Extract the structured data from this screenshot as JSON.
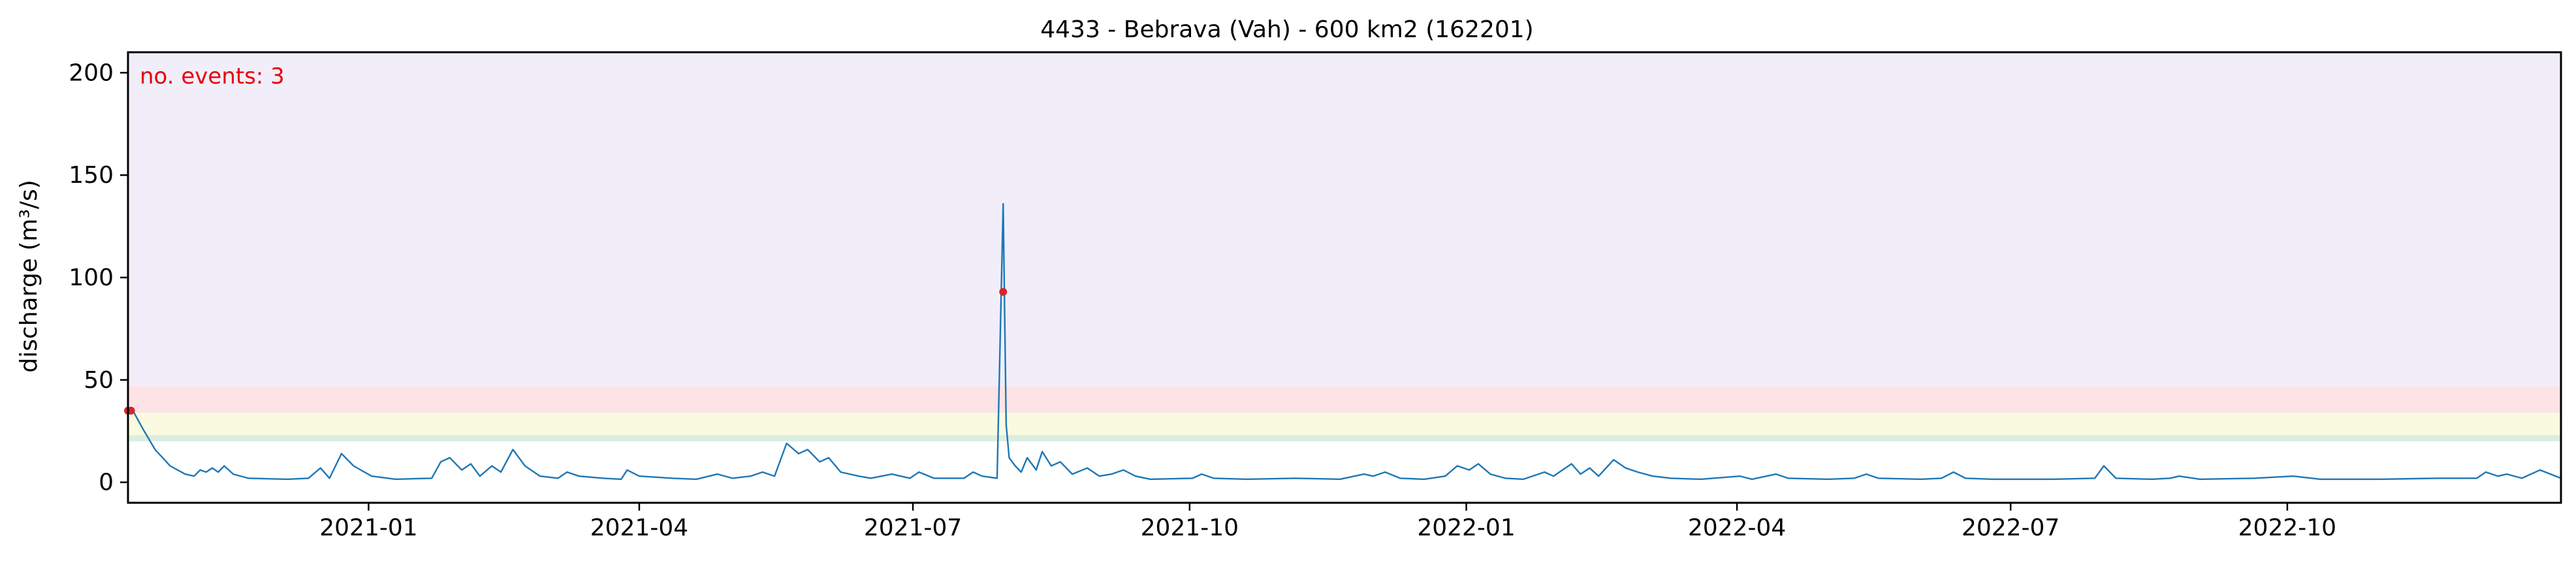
{
  "chart_data": {
    "type": "line",
    "title": "4433 - Bebrava (Vah) - 600 km2 (162201)",
    "ylabel": "discharge (m³/s)",
    "xlabel": "",
    "annotation": "no. events: 3",
    "xlim": [
      "2020-10-13",
      "2022-12-31"
    ],
    "ylim": [
      -10,
      210
    ],
    "yticks": [
      0,
      50,
      100,
      150,
      200
    ],
    "xticks": [
      {
        "date": "2021-01-01",
        "label": "2021-01"
      },
      {
        "date": "2021-04-01",
        "label": "2021-04"
      },
      {
        "date": "2021-07-01",
        "label": "2021-07"
      },
      {
        "date": "2021-10-01",
        "label": "2021-10"
      },
      {
        "date": "2022-01-01",
        "label": "2022-01"
      },
      {
        "date": "2022-04-01",
        "label": "2022-04"
      },
      {
        "date": "2022-07-01",
        "label": "2022-07"
      },
      {
        "date": "2022-10-01",
        "label": "2022-10"
      }
    ],
    "threshold_bands": [
      {
        "from": 20,
        "to": 23,
        "color": "#dbeee0"
      },
      {
        "from": 23,
        "to": 34,
        "color": "#fafae0"
      },
      {
        "from": 34,
        "to": 47,
        "color": "#fde3e6"
      },
      {
        "from": 47,
        "to": 210,
        "color": "#f1eefa"
      }
    ],
    "series": [
      {
        "color": "#1f77b4",
        "points": [
          [
            "2020-10-13",
            36
          ],
          [
            "2020-10-15",
            34
          ],
          [
            "2020-10-18",
            26
          ],
          [
            "2020-10-22",
            16
          ],
          [
            "2020-10-27",
            8
          ],
          [
            "2020-11-01",
            4
          ],
          [
            "2020-11-04",
            3
          ],
          [
            "2020-11-06",
            6
          ],
          [
            "2020-11-08",
            5
          ],
          [
            "2020-11-10",
            7
          ],
          [
            "2020-11-12",
            5
          ],
          [
            "2020-11-14",
            8
          ],
          [
            "2020-11-17",
            4
          ],
          [
            "2020-11-22",
            2
          ],
          [
            "2020-12-05",
            1.5
          ],
          [
            "2020-12-12",
            2
          ],
          [
            "2020-12-16",
            7
          ],
          [
            "2020-12-19",
            2
          ],
          [
            "2020-12-23",
            14
          ],
          [
            "2020-12-27",
            8
          ],
          [
            "2021-01-02",
            3
          ],
          [
            "2021-01-10",
            1.5
          ],
          [
            "2021-01-22",
            2
          ],
          [
            "2021-01-25",
            10
          ],
          [
            "2021-01-28",
            12
          ],
          [
            "2021-02-01",
            6
          ],
          [
            "2021-02-04",
            9
          ],
          [
            "2021-02-07",
            3
          ],
          [
            "2021-02-11",
            8
          ],
          [
            "2021-02-14",
            5
          ],
          [
            "2021-02-18",
            16
          ],
          [
            "2021-02-22",
            8
          ],
          [
            "2021-02-27",
            3
          ],
          [
            "2021-03-05",
            2
          ],
          [
            "2021-03-08",
            5
          ],
          [
            "2021-03-12",
            3
          ],
          [
            "2021-03-20",
            2
          ],
          [
            "2021-03-26",
            1.5
          ],
          [
            "2021-03-28",
            6
          ],
          [
            "2021-04-01",
            3
          ],
          [
            "2021-04-12",
            2
          ],
          [
            "2021-04-20",
            1.5
          ],
          [
            "2021-04-27",
            4
          ],
          [
            "2021-05-02",
            2
          ],
          [
            "2021-05-08",
            3
          ],
          [
            "2021-05-12",
            5
          ],
          [
            "2021-05-16",
            3
          ],
          [
            "2021-05-20",
            19
          ],
          [
            "2021-05-24",
            14
          ],
          [
            "2021-05-27",
            16
          ],
          [
            "2021-05-31",
            10
          ],
          [
            "2021-06-03",
            12
          ],
          [
            "2021-06-07",
            5
          ],
          [
            "2021-06-13",
            3
          ],
          [
            "2021-06-17",
            2
          ],
          [
            "2021-06-24",
            4
          ],
          [
            "2021-06-30",
            2
          ],
          [
            "2021-07-03",
            5
          ],
          [
            "2021-07-08",
            2
          ],
          [
            "2021-07-18",
            2
          ],
          [
            "2021-07-21",
            5
          ],
          [
            "2021-07-24",
            3
          ],
          [
            "2021-07-29",
            2
          ],
          [
            "2021-07-31",
            136
          ],
          [
            "2021-08-01",
            28
          ],
          [
            "2021-08-02",
            12
          ],
          [
            "2021-08-04",
            8
          ],
          [
            "2021-08-06",
            5
          ],
          [
            "2021-08-08",
            12
          ],
          [
            "2021-08-11",
            6
          ],
          [
            "2021-08-13",
            15
          ],
          [
            "2021-08-16",
            8
          ],
          [
            "2021-08-19",
            10
          ],
          [
            "2021-08-23",
            4
          ],
          [
            "2021-08-28",
            7
          ],
          [
            "2021-09-01",
            3
          ],
          [
            "2021-09-05",
            4
          ],
          [
            "2021-09-09",
            6
          ],
          [
            "2021-09-13",
            3
          ],
          [
            "2021-09-18",
            1.5
          ],
          [
            "2021-10-02",
            2
          ],
          [
            "2021-10-05",
            4
          ],
          [
            "2021-10-09",
            2
          ],
          [
            "2021-10-20",
            1.5
          ],
          [
            "2021-11-05",
            2
          ],
          [
            "2021-11-20",
            1.5
          ],
          [
            "2021-11-28",
            4
          ],
          [
            "2021-12-01",
            3
          ],
          [
            "2021-12-05",
            5
          ],
          [
            "2021-12-10",
            2
          ],
          [
            "2021-12-18",
            1.5
          ],
          [
            "2021-12-25",
            3
          ],
          [
            "2021-12-29",
            8
          ],
          [
            "2022-01-02",
            6
          ],
          [
            "2022-01-05",
            9
          ],
          [
            "2022-01-09",
            4
          ],
          [
            "2022-01-14",
            2
          ],
          [
            "2022-01-20",
            1.5
          ],
          [
            "2022-01-27",
            5
          ],
          [
            "2022-01-30",
            3
          ],
          [
            "2022-02-02",
            6
          ],
          [
            "2022-02-05",
            9
          ],
          [
            "2022-02-08",
            4
          ],
          [
            "2022-02-11",
            7
          ],
          [
            "2022-02-14",
            3
          ],
          [
            "2022-02-19",
            11
          ],
          [
            "2022-02-23",
            7
          ],
          [
            "2022-02-27",
            5
          ],
          [
            "2022-03-04",
            3
          ],
          [
            "2022-03-10",
            2
          ],
          [
            "2022-03-20",
            1.5
          ],
          [
            "2022-04-02",
            3
          ],
          [
            "2022-04-06",
            1.5
          ],
          [
            "2022-04-14",
            4
          ],
          [
            "2022-04-18",
            2
          ],
          [
            "2022-05-01",
            1.5
          ],
          [
            "2022-05-10",
            2
          ],
          [
            "2022-05-14",
            4
          ],
          [
            "2022-05-18",
            2
          ],
          [
            "2022-06-01",
            1.5
          ],
          [
            "2022-06-08",
            2
          ],
          [
            "2022-06-12",
            5
          ],
          [
            "2022-06-16",
            2
          ],
          [
            "2022-06-25",
            1.5
          ],
          [
            "2022-07-15",
            1.5
          ],
          [
            "2022-07-29",
            2
          ],
          [
            "2022-08-01",
            8
          ],
          [
            "2022-08-05",
            2
          ],
          [
            "2022-08-17",
            1.5
          ],
          [
            "2022-08-23",
            2
          ],
          [
            "2022-08-26",
            3
          ],
          [
            "2022-09-02",
            1.5
          ],
          [
            "2022-09-20",
            2
          ],
          [
            "2022-10-03",
            3
          ],
          [
            "2022-10-12",
            1.5
          ],
          [
            "2022-11-01",
            1.5
          ],
          [
            "2022-11-20",
            2
          ],
          [
            "2022-12-03",
            2
          ],
          [
            "2022-12-06",
            5
          ],
          [
            "2022-12-10",
            3
          ],
          [
            "2022-12-13",
            4
          ],
          [
            "2022-12-18",
            2
          ],
          [
            "2022-12-24",
            6
          ],
          [
            "2022-12-31",
            2
          ]
        ]
      }
    ],
    "events": [
      {
        "date": "2020-10-13",
        "value": 35,
        "color": "#d62728"
      },
      {
        "date": "2020-10-14",
        "value": 35,
        "color": "#d62728"
      },
      {
        "date": "2021-07-31",
        "value": 93,
        "color": "#d62728"
      }
    ],
    "colors": {
      "line": "#1f77b4",
      "event": "#d62728",
      "annotation": "#e8000b",
      "axis": "#000000"
    }
  }
}
